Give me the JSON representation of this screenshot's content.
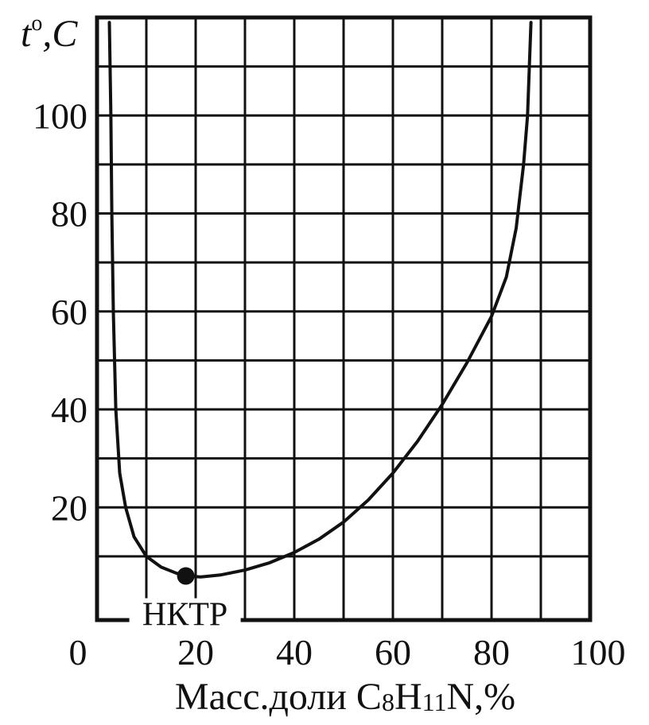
{
  "chart_data": {
    "type": "line",
    "title": "",
    "xlabel": {
      "prefix": "Масс.доли C",
      "sub1": "8",
      "mid": "H",
      "sub2": "11",
      "suffix": "N,%"
    },
    "ylabel": {
      "t": "t",
      "sup": "o",
      "rest": ",C"
    },
    "xlim": [
      0,
      100
    ],
    "ylim": [
      -3,
      120
    ],
    "grid": true,
    "x_ticks": [
      0,
      20,
      40,
      60,
      80,
      100
    ],
    "x_tick_labels": [
      "0",
      "20",
      "40",
      "60",
      "80",
      "100"
    ],
    "y_ticks": [
      20,
      40,
      60,
      80,
      100
    ],
    "y_tick_labels": [
      "20",
      "40",
      "60",
      "80",
      "100"
    ],
    "series": [
      {
        "points": [
          [
            2.5,
            119
          ],
          [
            2.8,
            100
          ],
          [
            3.0,
            80
          ],
          [
            3.3,
            60
          ],
          [
            3.8,
            40
          ],
          [
            4.6,
            27
          ],
          [
            5.8,
            20
          ],
          [
            7.5,
            14
          ],
          [
            10,
            10
          ],
          [
            13,
            7.8
          ],
          [
            16,
            6.6
          ],
          [
            18,
            6.0
          ],
          [
            21,
            5.8
          ],
          [
            25,
            6.2
          ],
          [
            30,
            7.2
          ],
          [
            35,
            8.7
          ],
          [
            40,
            10.8
          ],
          [
            45,
            13.5
          ],
          [
            50,
            17
          ],
          [
            55,
            21.5
          ],
          [
            60,
            27
          ],
          [
            65,
            33.5
          ],
          [
            70,
            41
          ],
          [
            75,
            49.5
          ],
          [
            80,
            59
          ],
          [
            83,
            67
          ],
          [
            85,
            77
          ],
          [
            86.5,
            90
          ],
          [
            87.3,
            100
          ],
          [
            88.0,
            119
          ]
        ]
      }
    ],
    "annotations": [
      {
        "label": "НКТР",
        "x": 18,
        "y": 6
      }
    ]
  }
}
